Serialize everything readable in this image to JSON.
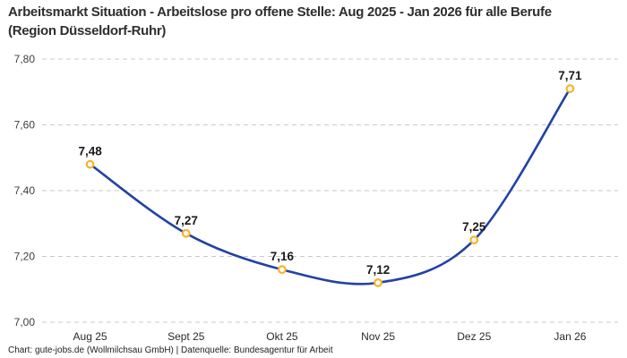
{
  "header": {
    "title": "Arbeitsmarkt Situation - Arbeitslose pro offene Stelle: Aug 2025 - Jan 2026 für alle Berufe (Region Düsseldorf-Ruhr)"
  },
  "footer": {
    "credit": "Chart: gute-jobs.de (Wollmilchsau GmbH) | Datenquelle: Bundesagentur für Arbeit"
  },
  "chart_data": {
    "type": "line",
    "title": "Arbeitsmarkt Situation - Arbeitslose pro offene Stelle: Aug 2025 - Jan 2026 für alle Berufe (Region Düsseldorf-Ruhr)",
    "categories": [
      "Aug 25",
      "Sept 25",
      "Okt 25",
      "Nov 25",
      "Dez 25",
      "Jan 26"
    ],
    "values": [
      7.48,
      7.27,
      7.16,
      7.12,
      7.25,
      7.71
    ],
    "point_labels": [
      "7,48",
      "7,27",
      "7,16",
      "7,12",
      "7,25",
      "7,71"
    ],
    "xlabel": "",
    "ylabel": "",
    "ylim": [
      7.0,
      7.8
    ],
    "ytick_values": [
      7.0,
      7.2,
      7.4,
      7.6,
      7.8
    ],
    "ytick_labels": [
      "7,00",
      "7,20",
      "7,40",
      "7,60",
      "7,80"
    ],
    "legend": "none",
    "grid": "horizontal-dashed",
    "line_shape": "spline",
    "colors": {
      "line": "#2342a3",
      "marker_ring": "#f5b32d",
      "marker_fill": "#ffffff",
      "grid": "#c9c9c9",
      "axis_text": "#3d3d3d",
      "label_text": "#1a1a1a"
    }
  }
}
